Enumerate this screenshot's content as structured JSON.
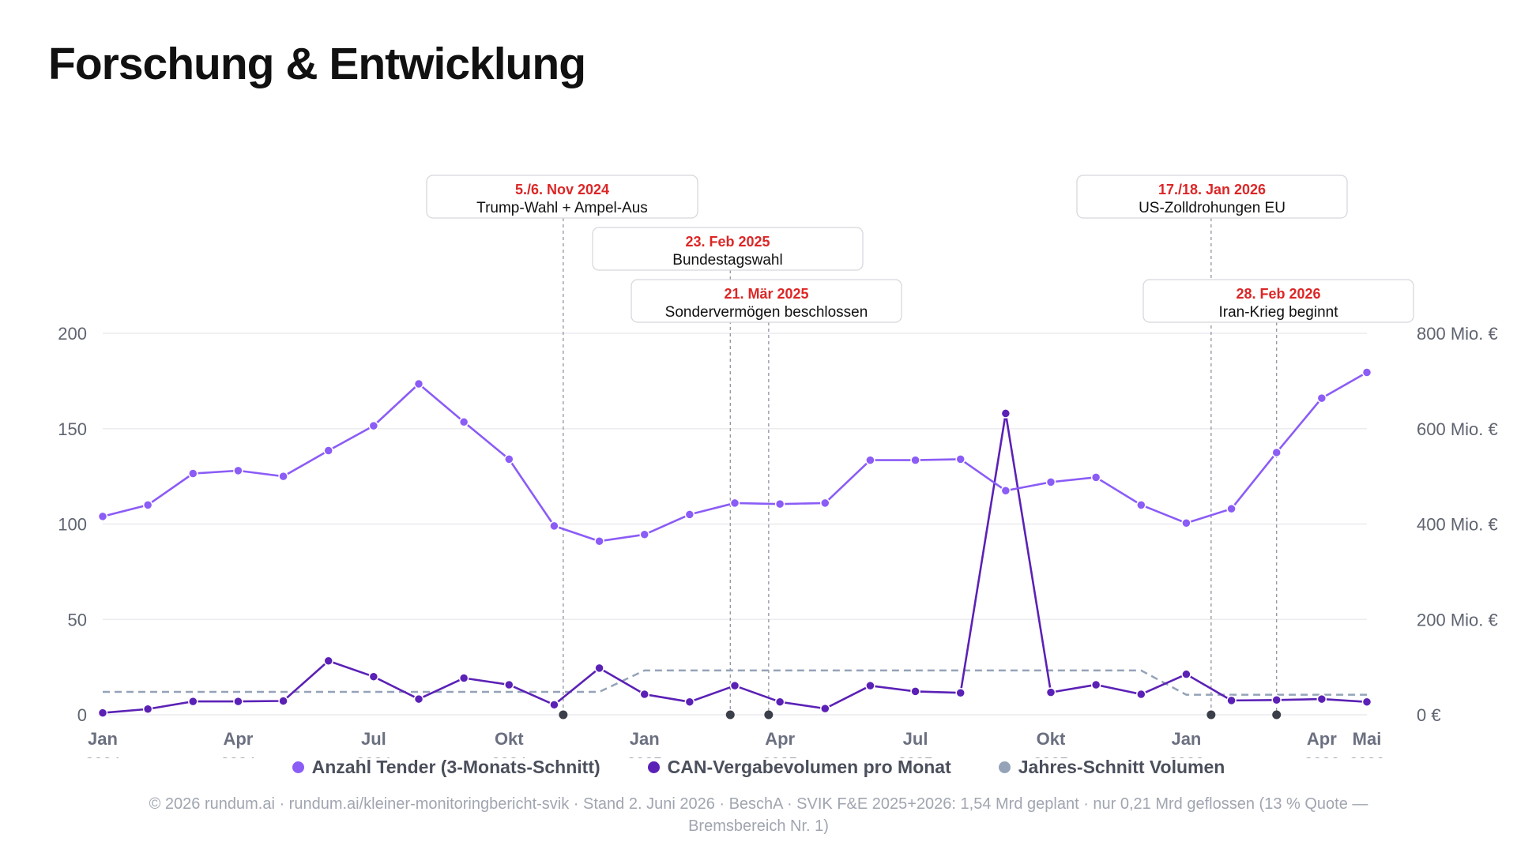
{
  "title": "Forschung & Entwicklung",
  "footer": "© 2026 rundum.ai · rundum.ai/kleiner-monitoringbericht-svik · Stand 2. Juni 2026 · BeschA · SVIK F&E 2025+2026: 1,54 Mrd geplant · nur 0,21 Mrd geflossen (13 % Quote — Bremsbereich Nr. 1)",
  "colors": {
    "tender": "#8b5cf6",
    "volume": "#5b21b6",
    "avg": "#94a3b8",
    "annotation_date": "#dc2626",
    "grid": "#ececf0"
  },
  "chart_data": {
    "type": "line",
    "x": [
      "2024-01",
      "2024-02",
      "2024-03",
      "2024-04",
      "2024-05",
      "2024-06",
      "2024-07",
      "2024-08",
      "2024-09",
      "2024-10",
      "2024-11",
      "2024-12",
      "2025-01",
      "2025-02",
      "2025-03",
      "2025-04",
      "2025-05",
      "2025-06",
      "2025-07",
      "2025-08",
      "2025-09",
      "2025-10",
      "2025-11",
      "2025-12",
      "2026-01",
      "2026-02",
      "2026-03",
      "2026-04",
      "2026-05"
    ],
    "x_axis": {
      "ticks": [
        {
          "x": "2024-01",
          "month": "Jan",
          "year": "2024"
        },
        {
          "x": "2024-04",
          "month": "Apr",
          "year": "2024"
        },
        {
          "x": "2024-07",
          "month": "Jul",
          "year": "2024"
        },
        {
          "x": "2024-10",
          "month": "Okt",
          "year": "2024"
        },
        {
          "x": "2025-01",
          "month": "Jan",
          "year": "2025"
        },
        {
          "x": "2025-04",
          "month": "Apr",
          "year": "2025"
        },
        {
          "x": "2025-07",
          "month": "Jul",
          "year": "2025"
        },
        {
          "x": "2025-10",
          "month": "Okt",
          "year": "2025"
        },
        {
          "x": "2026-01",
          "month": "Jan",
          "year": "2026"
        },
        {
          "x": "2026-04",
          "month": "Apr",
          "year": "2026"
        },
        {
          "x": "2026-05",
          "month": "Mai",
          "year": "2026"
        }
      ]
    },
    "y_left": {
      "ylim": [
        0,
        200
      ],
      "ticks": [
        0,
        50,
        100,
        150,
        200
      ]
    },
    "y_right": {
      "ylim": [
        0,
        800
      ],
      "ticks": [
        "0 €",
        "200 Mio. €",
        "400 Mio. €",
        "600 Mio. €",
        "800 Mio. €"
      ]
    },
    "grid": "horizontal",
    "legend_position": "bottom",
    "series": [
      {
        "name": "Anzahl Tender (3-Monats-Schnitt)",
        "axis": "left",
        "style": "line-markers",
        "values": [
          104,
          110,
          126.5,
          128,
          125,
          138.5,
          151.5,
          173.5,
          153.5,
          134,
          99,
          91,
          94.5,
          105,
          111,
          110.5,
          111,
          133.5,
          133.5,
          134,
          117.5,
          122,
          124.5,
          110,
          100.5,
          108,
          137.5,
          166,
          179.5
        ]
      },
      {
        "name": "CAN-Vergabevolumen pro Monat",
        "axis": "right",
        "unit": "Mio. €",
        "style": "line-markers",
        "values": [
          4,
          12,
          28,
          28,
          29,
          113,
          80,
          33,
          77,
          63,
          21,
          98,
          43,
          27,
          61,
          27,
          13,
          61,
          49,
          46,
          632,
          47,
          63,
          43,
          85,
          30,
          31,
          33,
          27
        ]
      },
      {
        "name": "Jahres-Schnitt Volumen",
        "axis": "right",
        "unit": "Mio. €",
        "style": "dashed",
        "values": [
          48,
          48,
          48,
          48,
          48,
          48,
          48,
          48,
          48,
          48,
          48,
          48,
          93,
          93,
          93,
          93,
          93,
          93,
          93,
          93,
          93,
          93,
          93,
          93,
          42,
          42,
          42,
          42,
          42
        ]
      }
    ],
    "annotations": [
      {
        "date": "5./6. Nov 2024",
        "text": "Trump-Wahl + Ampel-Aus",
        "x": 10.2
      },
      {
        "date": "23. Feb 2025",
        "text": "Bundestagswahl",
        "x": 13.9
      },
      {
        "date": "21. Mär 2025",
        "text": "Sondervermögen beschlossen",
        "x": 14.75
      },
      {
        "date": "17./18. Jan 2026",
        "text": "US-Zolldrohungen EU",
        "x": 24.55
      },
      {
        "date": "28. Feb 2026",
        "text": "Iran-Krieg beginnt",
        "x": 26.0
      }
    ]
  }
}
